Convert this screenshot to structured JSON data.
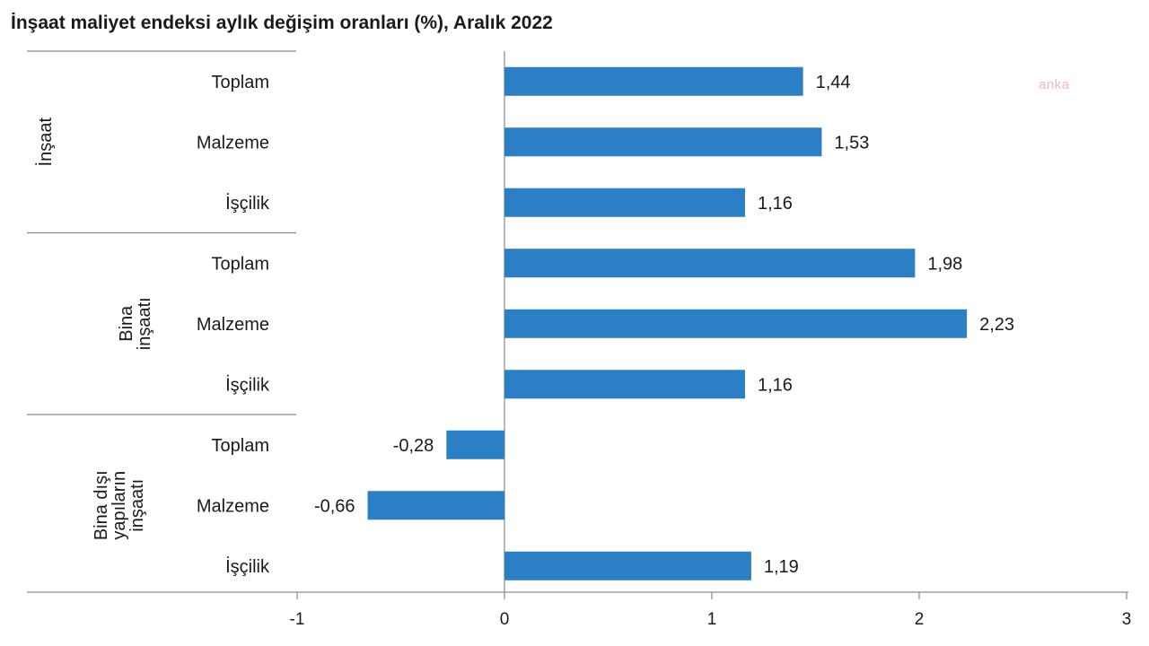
{
  "title": "İnşaat maliyet endeksi aylık değişim oranları (%), Aralık 2022",
  "watermark": "anka",
  "colors": {
    "bar": "#2b7fc4",
    "axis": "#8c8c8c",
    "text": "#1a1a1a"
  },
  "chart_data": {
    "type": "bar",
    "orientation": "horizontal",
    "xlim": [
      -1,
      3
    ],
    "xticks": [
      "-1",
      "0",
      "1",
      "2",
      "3"
    ],
    "groups": [
      {
        "name": "İnşaat",
        "label_lines": [
          "İnşaat"
        ],
        "categories": [
          "Toplam",
          "Malzeme",
          "İşçilik"
        ],
        "values": [
          1.44,
          1.53,
          1.16
        ],
        "labels": [
          "1,44",
          "1,53",
          "1,16"
        ]
      },
      {
        "name": "Bina inşaatı",
        "label_lines": [
          "Bina",
          "inşaatı"
        ],
        "categories": [
          "Toplam",
          "Malzeme",
          "İşçilik"
        ],
        "values": [
          1.98,
          2.23,
          1.16
        ],
        "labels": [
          "1,98",
          "2,23",
          "1,16"
        ]
      },
      {
        "name": "Bina dışı yapıların inşaatı",
        "label_lines": [
          "Bina dışı",
          "yapıların",
          "inşaatı"
        ],
        "categories": [
          "Toplam",
          "Malzeme",
          "İşçilik"
        ],
        "values": [
          -0.28,
          -0.66,
          1.19
        ],
        "labels": [
          "-0,28",
          "-0,66",
          "1,19"
        ]
      }
    ]
  }
}
